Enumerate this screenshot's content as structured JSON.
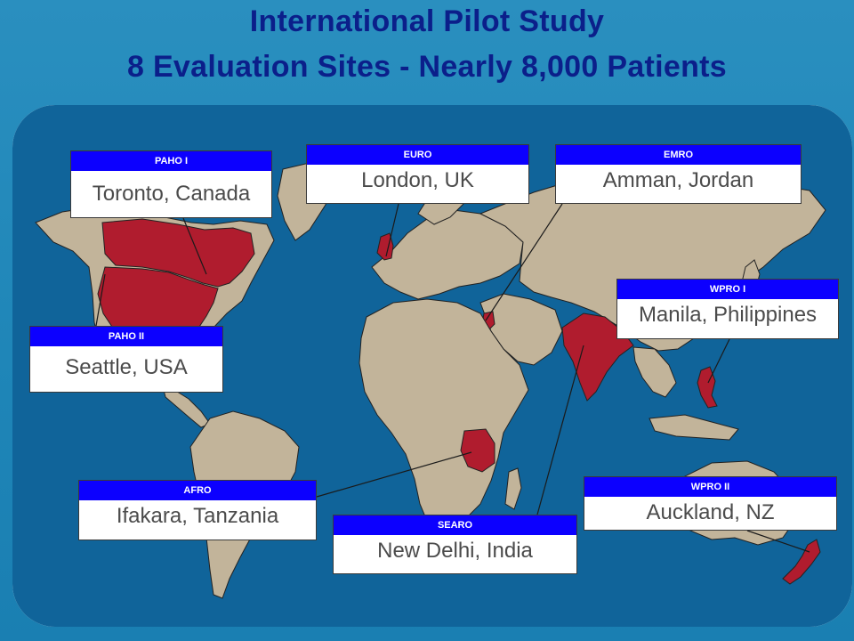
{
  "title": {
    "line1": "International Pilot Study",
    "line2": "8 Evaluation Sites - Nearly 8,000 Patients"
  },
  "colors": {
    "background": "#1f86b8",
    "title": "#0b1f8a",
    "ocean": "#10649a",
    "land": "#c2b49a",
    "highlight": "#b01c2e",
    "region_header": "#0c00ff"
  },
  "sites": [
    {
      "region": "PAHO I",
      "city": "Toronto, Canada"
    },
    {
      "region": "EURO",
      "city": "London, UK"
    },
    {
      "region": "EMRO",
      "city": "Amman, Jordan"
    },
    {
      "region": "WPRO I",
      "city": "Manila, Philippines"
    },
    {
      "region": "PAHO II",
      "city": "Seattle, USA"
    },
    {
      "region": "AFRO",
      "city": "Ifakara, Tanzania"
    },
    {
      "region": "SEARO",
      "city": "New Delhi, India"
    },
    {
      "region": "WPRO II",
      "city": "Auckland, NZ"
    }
  ]
}
